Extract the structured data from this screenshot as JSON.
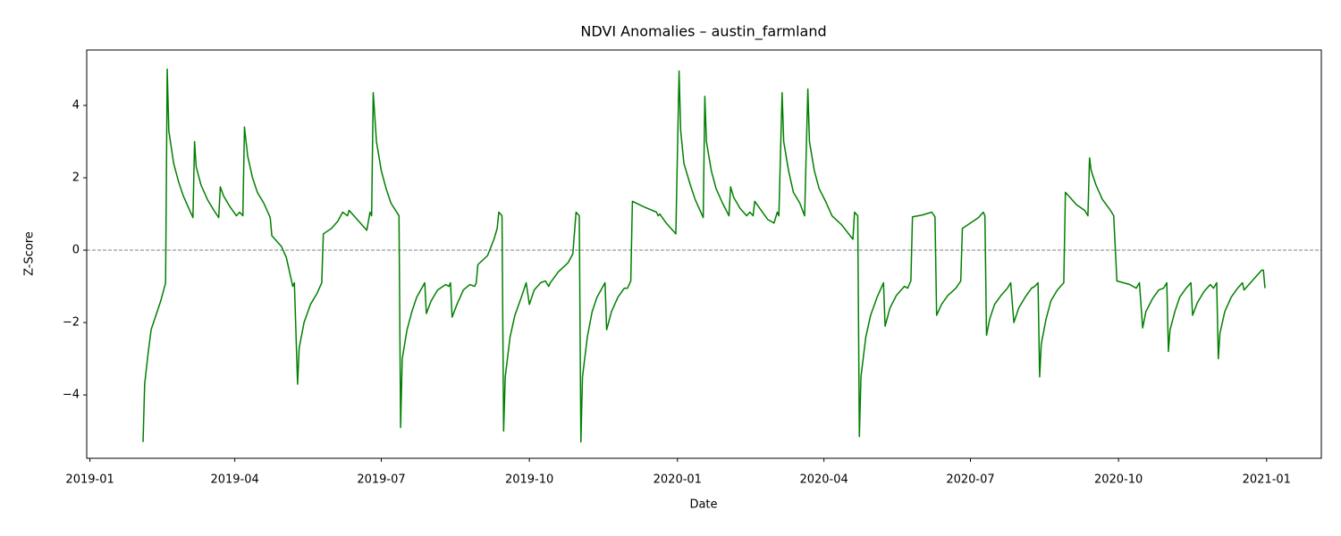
{
  "chart_data": {
    "type": "line",
    "title": "NDVI Anomalies – austin_farmland",
    "x_label": "Date",
    "y_label": "Z-Score",
    "color": "#008000",
    "x": [
      "2019-02-03",
      "2019-02-04",
      "2019-02-06",
      "2019-02-08",
      "2019-02-11",
      "2019-02-14",
      "2019-02-17",
      "2019-02-18",
      "2019-02-19",
      "2019-02-22",
      "2019-02-25",
      "2019-02-28",
      "2019-03-03",
      "2019-03-06",
      "2019-03-07",
      "2019-03-08",
      "2019-03-11",
      "2019-03-15",
      "2019-03-19",
      "2019-03-22",
      "2019-03-23",
      "2019-03-25",
      "2019-03-29",
      "2019-04-02",
      "2019-04-04",
      "2019-04-06",
      "2019-04-07",
      "2019-04-09",
      "2019-04-12",
      "2019-04-15",
      "2019-04-19",
      "2019-04-23",
      "2019-04-24",
      "2019-04-27",
      "2019-04-30",
      "2019-05-03",
      "2019-05-05",
      "2019-05-07",
      "2019-05-08",
      "2019-05-10",
      "2019-05-11",
      "2019-05-14",
      "2019-05-18",
      "2019-05-22",
      "2019-05-25",
      "2019-05-26",
      "2019-05-31",
      "2019-06-04",
      "2019-06-07",
      "2019-06-10",
      "2019-06-11",
      "2019-06-16",
      "2019-06-22",
      "2019-06-24",
      "2019-06-25",
      "2019-06-26",
      "2019-06-28",
      "2019-07-01",
      "2019-07-04",
      "2019-07-07",
      "2019-07-12",
      "2019-07-13",
      "2019-07-14",
      "2019-07-17",
      "2019-07-20",
      "2019-07-23",
      "2019-07-28",
      "2019-07-29",
      "2019-08-01",
      "2019-08-05",
      "2019-08-10",
      "2019-08-12",
      "2019-08-13",
      "2019-08-14",
      "2019-08-17",
      "2019-08-21",
      "2019-08-25",
      "2019-08-28",
      "2019-08-29",
      "2019-08-30",
      "2019-09-05",
      "2019-09-09",
      "2019-09-11",
      "2019-09-12",
      "2019-09-14",
      "2019-09-15",
      "2019-09-16",
      "2019-09-19",
      "2019-09-22",
      "2019-09-26",
      "2019-09-29",
      "2019-10-01",
      "2019-10-04",
      "2019-10-08",
      "2019-10-11",
      "2019-10-13",
      "2019-10-14",
      "2019-10-19",
      "2019-10-25",
      "2019-10-28",
      "2019-10-30",
      "2019-11-01",
      "2019-11-02",
      "2019-11-03",
      "2019-11-06",
      "2019-11-09",
      "2019-11-12",
      "2019-11-17",
      "2019-11-18",
      "2019-11-21",
      "2019-11-25",
      "2019-11-29",
      "2019-12-01",
      "2019-12-03",
      "2019-12-04",
      "2019-12-11",
      "2019-12-19",
      "2019-12-20",
      "2019-12-21",
      "2019-12-25",
      "2019-12-31",
      "2020-01-02",
      "2020-01-03",
      "2020-01-05",
      "2020-01-09",
      "2020-01-12",
      "2020-01-17",
      "2020-01-18",
      "2020-01-19",
      "2020-01-22",
      "2020-01-25",
      "2020-01-29",
      "2020-02-02",
      "2020-02-03",
      "2020-02-05",
      "2020-02-09",
      "2020-02-13",
      "2020-02-15",
      "2020-02-17",
      "2020-02-18",
      "2020-02-22",
      "2020-02-26",
      "2020-03-01",
      "2020-03-03",
      "2020-03-04",
      "2020-03-06",
      "2020-03-07",
      "2020-03-10",
      "2020-03-13",
      "2020-03-17",
      "2020-03-20",
      "2020-03-22",
      "2020-03-23",
      "2020-03-26",
      "2020-03-29",
      "2020-04-02",
      "2020-04-06",
      "2020-04-12",
      "2020-04-19",
      "2020-04-20",
      "2020-04-22",
      "2020-04-23",
      "2020-04-24",
      "2020-04-27",
      "2020-04-30",
      "2020-05-04",
      "2020-05-08",
      "2020-05-09",
      "2020-05-12",
      "2020-05-16",
      "2020-05-21",
      "2020-05-23",
      "2020-05-25",
      "2020-05-26",
      "2020-06-01",
      "2020-06-07",
      "2020-06-09",
      "2020-06-10",
      "2020-06-13",
      "2020-06-17",
      "2020-06-22",
      "2020-06-25",
      "2020-06-26",
      "2020-07-01",
      "2020-07-06",
      "2020-07-09",
      "2020-07-10",
      "2020-07-11",
      "2020-07-13",
      "2020-07-16",
      "2020-07-20",
      "2020-07-24",
      "2020-07-26",
      "2020-07-28",
      "2020-07-31",
      "2020-08-04",
      "2020-08-08",
      "2020-08-10",
      "2020-08-12",
      "2020-08-13",
      "2020-08-14",
      "2020-08-17",
      "2020-08-20",
      "2020-08-24",
      "2020-08-28",
      "2020-08-29",
      "2020-09-01",
      "2020-09-05",
      "2020-09-10",
      "2020-09-12",
      "2020-09-13",
      "2020-09-14",
      "2020-09-17",
      "2020-09-21",
      "2020-09-26",
      "2020-09-28",
      "2020-09-30",
      "2020-10-08",
      "2020-10-12",
      "2020-10-14",
      "2020-10-16",
      "2020-10-18",
      "2020-10-22",
      "2020-10-26",
      "2020-10-29",
      "2020-10-31",
      "2020-11-01",
      "2020-11-02",
      "2020-11-05",
      "2020-11-08",
      "2020-11-12",
      "2020-11-15",
      "2020-11-16",
      "2020-11-19",
      "2020-11-23",
      "2020-11-27",
      "2020-11-29",
      "2020-12-01",
      "2020-12-02",
      "2020-12-03",
      "2020-12-06",
      "2020-12-10",
      "2020-12-14",
      "2020-12-17",
      "2020-12-18",
      "2020-12-21",
      "2020-12-25",
      "2020-12-29",
      "2020-12-30",
      "2020-12-31"
    ],
    "values": [
      -5.3,
      -3.7,
      -2.9,
      -2.2,
      -1.8,
      -1.4,
      -0.9,
      5.0,
      3.3,
      2.4,
      1.9,
      1.5,
      1.2,
      0.9,
      3.0,
      2.3,
      1.8,
      1.4,
      1.1,
      0.9,
      1.75,
      1.5,
      1.2,
      0.95,
      1.05,
      0.95,
      3.4,
      2.6,
      2.0,
      1.6,
      1.3,
      0.9,
      0.4,
      0.25,
      0.1,
      -0.2,
      -0.6,
      -1.0,
      -0.9,
      -3.7,
      -2.7,
      -2.0,
      -1.5,
      -1.2,
      -0.9,
      0.45,
      0.6,
      0.8,
      1.05,
      0.95,
      1.1,
      0.85,
      0.55,
      1.05,
      0.95,
      4.35,
      3.0,
      2.2,
      1.7,
      1.3,
      0.95,
      -4.9,
      -3.0,
      -2.2,
      -1.7,
      -1.3,
      -0.9,
      -1.75,
      -1.4,
      -1.1,
      -0.95,
      -1.0,
      -0.9,
      -1.85,
      -1.5,
      -1.1,
      -0.95,
      -1.0,
      -0.9,
      -0.4,
      -0.15,
      0.3,
      0.6,
      1.05,
      0.95,
      -5.0,
      -3.5,
      -2.4,
      -1.8,
      -1.3,
      -0.9,
      -1.5,
      -1.1,
      -0.9,
      -0.85,
      -1.0,
      -0.9,
      -0.6,
      -0.35,
      -0.1,
      1.05,
      0.95,
      -5.3,
      -3.5,
      -2.4,
      -1.7,
      -1.3,
      -0.9,
      -2.2,
      -1.7,
      -1.3,
      -1.05,
      -1.05,
      -0.85,
      1.35,
      1.2,
      1.05,
      0.95,
      1.0,
      0.75,
      0.45,
      4.95,
      3.3,
      2.4,
      1.8,
      1.4,
      0.9,
      4.25,
      3.0,
      2.2,
      1.7,
      1.3,
      0.95,
      1.75,
      1.45,
      1.15,
      0.95,
      1.05,
      0.95,
      1.35,
      1.1,
      0.85,
      0.75,
      1.05,
      0.95,
      4.35,
      3.0,
      2.2,
      1.6,
      1.3,
      0.95,
      4.45,
      3.0,
      2.2,
      1.7,
      1.35,
      0.95,
      0.7,
      0.3,
      1.05,
      0.95,
      -5.15,
      -3.5,
      -2.4,
      -1.8,
      -1.3,
      -0.9,
      -2.1,
      -1.6,
      -1.25,
      -1.0,
      -1.05,
      -0.85,
      0.92,
      0.97,
      1.05,
      0.92,
      -1.8,
      -1.5,
      -1.25,
      -1.05,
      -0.85,
      0.6,
      0.75,
      0.9,
      1.05,
      0.95,
      -2.35,
      -1.9,
      -1.5,
      -1.25,
      -1.05,
      -0.9,
      -2.0,
      -1.6,
      -1.3,
      -1.05,
      -1.0,
      -0.9,
      -3.5,
      -2.6,
      -1.9,
      -1.4,
      -1.1,
      -0.9,
      1.6,
      1.45,
      1.25,
      1.1,
      0.95,
      2.55,
      2.2,
      1.8,
      1.4,
      1.1,
      0.95,
      -0.85,
      -0.95,
      -1.05,
      -0.9,
      -2.15,
      -1.7,
      -1.35,
      -1.1,
      -1.05,
      -0.9,
      -2.8,
      -2.2,
      -1.7,
      -1.3,
      -1.05,
      -0.9,
      -1.8,
      -1.45,
      -1.15,
      -0.95,
      -1.05,
      -0.9,
      -3.0,
      -2.3,
      -1.7,
      -1.3,
      -1.05,
      -0.9,
      -1.1,
      -0.95,
      -0.75,
      -0.55,
      -0.55,
      -1.05
    ],
    "xlim": [
      "2018-12-30",
      "2021-02-04"
    ],
    "xticks": [
      "2019-01",
      "2019-04",
      "2019-07",
      "2019-10",
      "2020-01",
      "2020-04",
      "2020-07",
      "2020-10",
      "2021-01"
    ],
    "ylim": [
      -5.75,
      5.53
    ],
    "yticks": [
      {
        "value": -4,
        "label": "−4"
      },
      {
        "value": -2,
        "label": "−2"
      },
      0,
      2,
      4
    ],
    "reference_line": {
      "value": 0,
      "color": "#808080"
    }
  }
}
